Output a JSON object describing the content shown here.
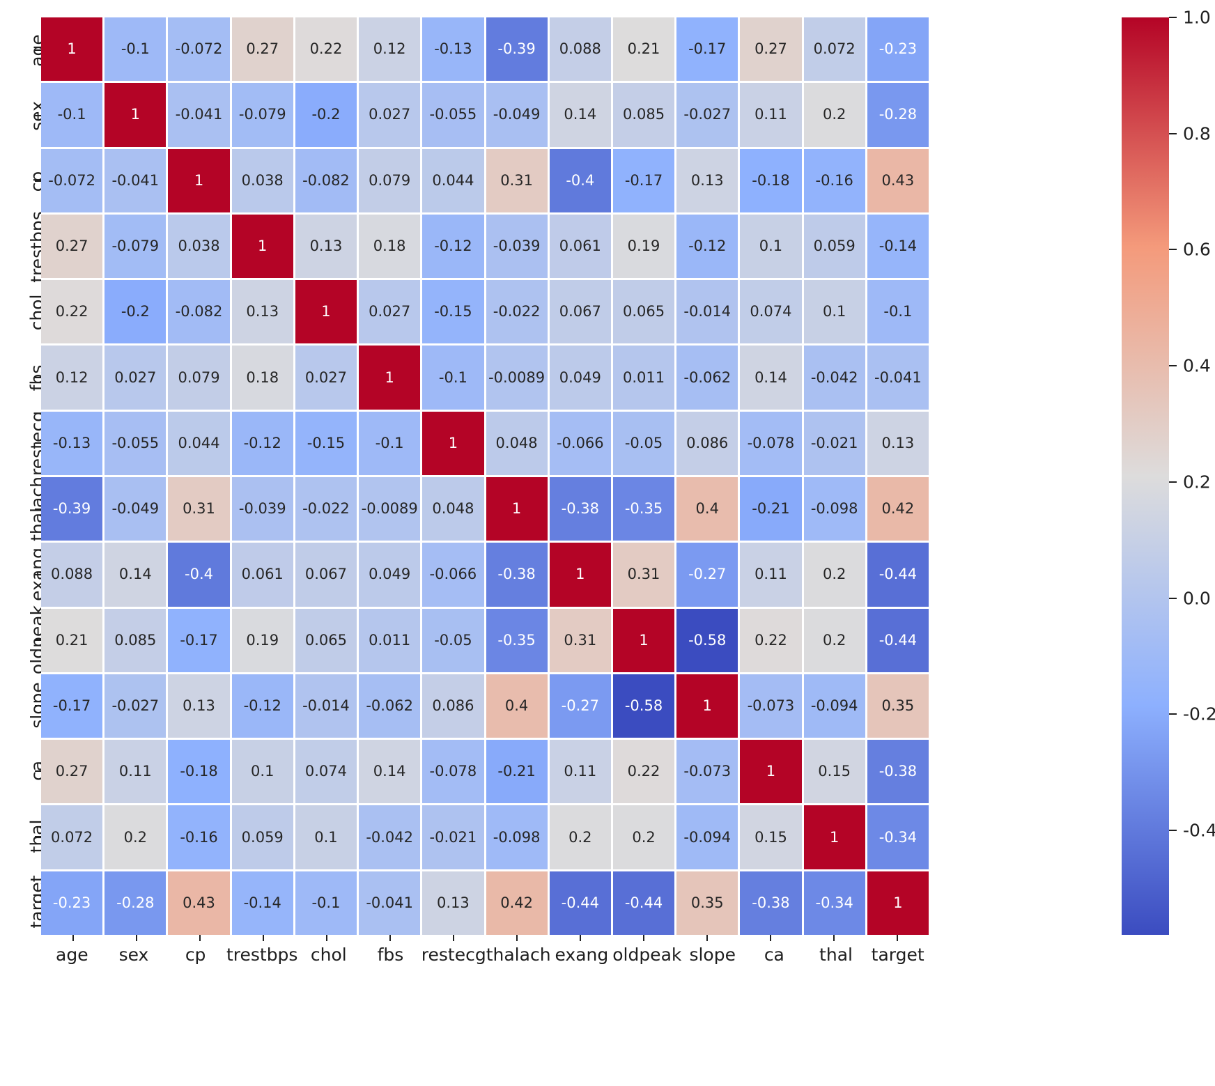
{
  "figure": {
    "background_color": "#ffffff",
    "title": ""
  },
  "chart_data": {
    "type": "heatmap",
    "title": "",
    "xlabel": "",
    "ylabel": "",
    "labels": [
      "age",
      "sex",
      "cp",
      "trestbps",
      "chol",
      "fbs",
      "restecg",
      "thalach",
      "exang",
      "oldpeak",
      "slope",
      "ca",
      "thal",
      "target"
    ],
    "matrix": [
      [
        1,
        -0.1,
        -0.072,
        0.27,
        0.22,
        0.12,
        -0.13,
        -0.39,
        0.088,
        0.21,
        -0.17,
        0.27,
        0.072,
        -0.23
      ],
      [
        -0.1,
        1,
        -0.041,
        -0.079,
        -0.2,
        0.027,
        -0.055,
        -0.049,
        0.14,
        0.085,
        -0.027,
        0.11,
        0.2,
        -0.28
      ],
      [
        -0.072,
        -0.041,
        1,
        0.038,
        -0.082,
        0.079,
        0.044,
        0.31,
        -0.4,
        -0.17,
        0.13,
        -0.18,
        -0.16,
        0.43
      ],
      [
        0.27,
        -0.079,
        0.038,
        1,
        0.13,
        0.18,
        -0.12,
        -0.039,
        0.061,
        0.19,
        -0.12,
        0.1,
        0.059,
        -0.14
      ],
      [
        0.22,
        -0.2,
        -0.082,
        0.13,
        1,
        0.027,
        -0.15,
        -0.022,
        0.067,
        0.065,
        -0.014,
        0.074,
        0.1,
        -0.1
      ],
      [
        0.12,
        0.027,
        0.079,
        0.18,
        0.027,
        1,
        -0.1,
        -0.0089,
        0.049,
        0.011,
        -0.062,
        0.14,
        -0.042,
        -0.041
      ],
      [
        -0.13,
        -0.055,
        0.044,
        -0.12,
        -0.15,
        -0.1,
        1,
        0.048,
        -0.066,
        -0.05,
        0.086,
        -0.078,
        -0.021,
        0.13
      ],
      [
        -0.39,
        -0.049,
        0.31,
        -0.039,
        -0.022,
        -0.0089,
        0.048,
        1,
        -0.38,
        -0.35,
        0.4,
        -0.21,
        -0.098,
        0.42
      ],
      [
        0.088,
        0.14,
        -0.4,
        0.061,
        0.067,
        0.049,
        -0.066,
        -0.38,
        1,
        0.31,
        -0.27,
        0.11,
        0.2,
        -0.44
      ],
      [
        0.21,
        0.085,
        -0.17,
        0.19,
        0.065,
        0.011,
        -0.05,
        -0.35,
        0.31,
        1,
        -0.58,
        0.22,
        0.2,
        -0.44
      ],
      [
        -0.17,
        -0.027,
        0.13,
        -0.12,
        -0.014,
        -0.062,
        0.086,
        0.4,
        -0.27,
        -0.58,
        1,
        -0.073,
        -0.094,
        0.35
      ],
      [
        0.27,
        0.11,
        -0.18,
        0.1,
        0.074,
        0.14,
        -0.078,
        -0.21,
        0.11,
        0.22,
        -0.073,
        1,
        0.15,
        -0.38
      ],
      [
        0.072,
        0.2,
        -0.16,
        0.059,
        0.1,
        -0.042,
        -0.021,
        -0.098,
        0.2,
        0.2,
        -0.094,
        0.15,
        1,
        -0.34
      ],
      [
        -0.23,
        -0.28,
        0.43,
        -0.14,
        -0.1,
        -0.041,
        0.13,
        0.42,
        -0.44,
        -0.44,
        0.35,
        -0.38,
        -0.34,
        1
      ]
    ],
    "vmin": -0.58,
    "vmax": 1.0,
    "colormap": "coolwarm",
    "colormap_anchors": [
      {
        "t": 0.0,
        "color": "#3b4cc0"
      },
      {
        "t": 0.25,
        "color": "#8db0fe"
      },
      {
        "t": 0.5,
        "color": "#dddcdc"
      },
      {
        "t": 0.75,
        "color": "#f49a7b"
      },
      {
        "t": 1.0,
        "color": "#b40426"
      }
    ],
    "grid_line_color": "#ffffff",
    "annot": true,
    "annot_color_dark": "#262626",
    "annot_color_light": "#ffffff",
    "legend_position": "colorbar-right",
    "colorbar": {
      "tick_labels": [
        "1.0",
        "0.8",
        "0.6",
        "0.4",
        "0.2",
        "0.0",
        "-0.2",
        "-0.4"
      ]
    }
  }
}
